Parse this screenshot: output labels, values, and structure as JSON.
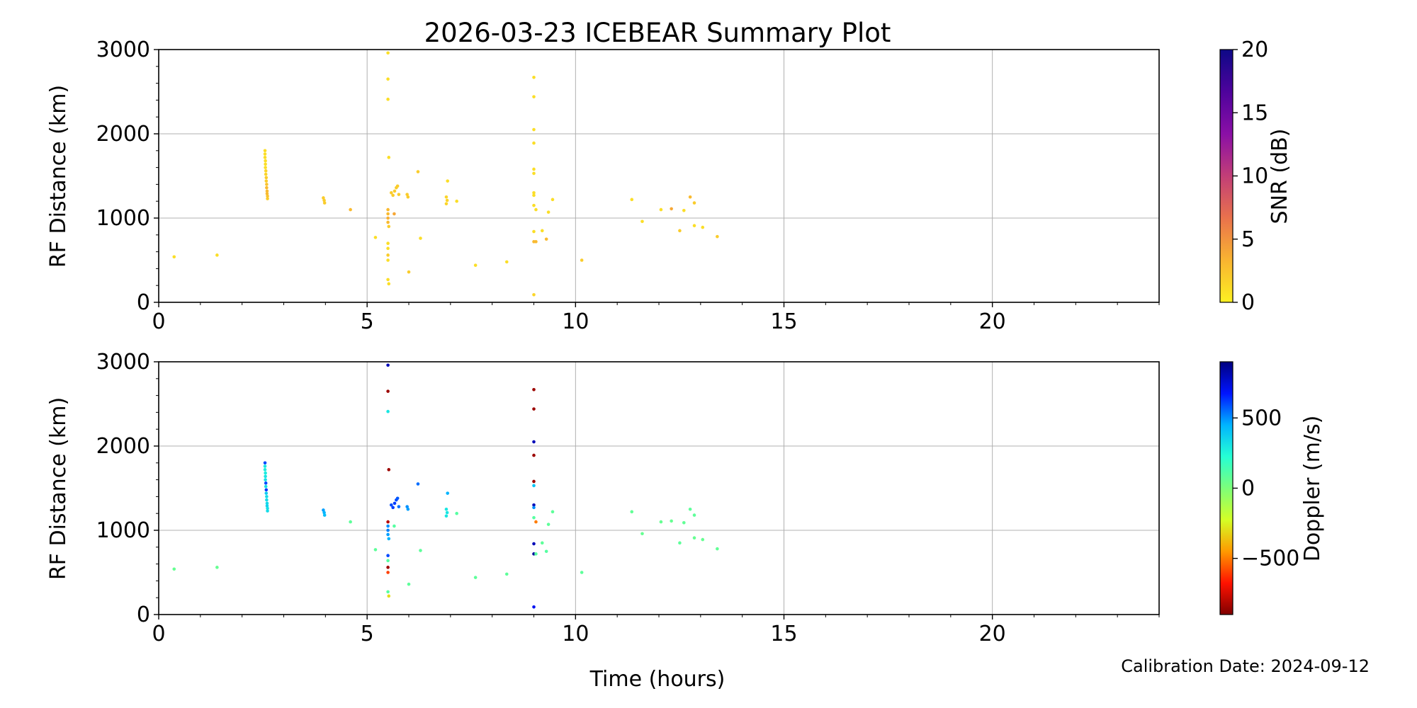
{
  "figure": {
    "title": "2026-03-23 ICEBEAR Summary Plot",
    "xlabel": "Time (hours)",
    "footer": "Calibration Date: 2024-09-12"
  },
  "chart_data": [
    {
      "type": "scatter",
      "ylabel": "RF Distance (km)",
      "xlim": [
        0,
        24
      ],
      "ylim": [
        0,
        3000
      ],
      "x_ticks": [
        0,
        5,
        10,
        15,
        20
      ],
      "x_tick_labels": [
        "0",
        "5",
        "10",
        "15",
        "20"
      ],
      "y_ticks": [
        0,
        1000,
        2000,
        3000
      ],
      "y_tick_labels": [
        "0",
        "1000",
        "2000",
        "3000"
      ],
      "grid": true,
      "colorbar": {
        "label": "SNR (dB)",
        "range": [
          0,
          20
        ],
        "ticks": [
          0,
          5,
          10,
          15,
          20
        ],
        "tick_labels": [
          "0",
          "5",
          "10",
          "15",
          "20"
        ],
        "colors": [
          "#fcf022",
          "#f9b431",
          "#e9724c",
          "#c23e77",
          "#8a0fa6",
          "#4e039c",
          "#0d0887"
        ]
      },
      "points": [
        [
          0.37,
          540,
          1
        ],
        [
          1.4,
          560,
          1
        ],
        [
          2.55,
          1800,
          1
        ],
        [
          2.55,
          1760,
          1
        ],
        [
          2.55,
          1720,
          1
        ],
        [
          2.56,
          1680,
          1
        ],
        [
          2.56,
          1640,
          1
        ],
        [
          2.56,
          1600,
          1
        ],
        [
          2.57,
          1560,
          1.5
        ],
        [
          2.57,
          1520,
          1.5
        ],
        [
          2.58,
          1480,
          2
        ],
        [
          2.58,
          1440,
          2
        ],
        [
          2.59,
          1400,
          2.5
        ],
        [
          2.59,
          1360,
          3
        ],
        [
          2.6,
          1320,
          3
        ],
        [
          2.6,
          1290,
          3
        ],
        [
          2.61,
          1260,
          2.5
        ],
        [
          2.61,
          1230,
          2
        ],
        [
          3.95,
          1240,
          2
        ],
        [
          3.97,
          1210,
          2
        ],
        [
          3.98,
          1180,
          2
        ],
        [
          4.6,
          1100,
          3
        ],
        [
          5.2,
          770,
          1
        ],
        [
          5.5,
          2960,
          1
        ],
        [
          5.5,
          2650,
          1
        ],
        [
          5.5,
          2410,
          1
        ],
        [
          5.52,
          1720,
          1
        ],
        [
          5.5,
          1100,
          3
        ],
        [
          5.5,
          1050,
          3
        ],
        [
          5.5,
          1000,
          3.5
        ],
        [
          5.5,
          950,
          3
        ],
        [
          5.52,
          900,
          2
        ],
        [
          5.5,
          700,
          1
        ],
        [
          5.5,
          640,
          1
        ],
        [
          5.5,
          560,
          2
        ],
        [
          5.5,
          500,
          1
        ],
        [
          5.5,
          270,
          1
        ],
        [
          5.52,
          220,
          1
        ],
        [
          5.58,
          1300,
          2
        ],
        [
          5.62,
          1270,
          2
        ],
        [
          5.66,
          1320,
          2
        ],
        [
          5.7,
          1360,
          2
        ],
        [
          5.73,
          1380,
          2
        ],
        [
          5.76,
          1280,
          2
        ],
        [
          5.65,
          1050,
          4
        ],
        [
          5.96,
          1280,
          2
        ],
        [
          5.98,
          1250,
          2
        ],
        [
          6.0,
          360,
          2
        ],
        [
          6.22,
          1550,
          2
        ],
        [
          6.28,
          760,
          1
        ],
        [
          6.9,
          1250,
          1.5
        ],
        [
          6.92,
          1210,
          1.5
        ],
        [
          6.9,
          1170,
          1.5
        ],
        [
          6.93,
          1440,
          1
        ],
        [
          7.15,
          1200,
          1
        ],
        [
          7.6,
          440,
          1
        ],
        [
          8.35,
          480,
          1
        ],
        [
          9.0,
          2670,
          1
        ],
        [
          9.0,
          2440,
          1
        ],
        [
          9.0,
          2050,
          1
        ],
        [
          9.0,
          1890,
          1
        ],
        [
          9.0,
          1580,
          1
        ],
        [
          9.0,
          1530,
          1
        ],
        [
          9.0,
          1300,
          1
        ],
        [
          9.0,
          1270,
          1
        ],
        [
          9.0,
          1150,
          1
        ],
        [
          9.05,
          1100,
          1
        ],
        [
          9.0,
          840,
          1
        ],
        [
          9.0,
          720,
          3
        ],
        [
          9.05,
          720,
          3
        ],
        [
          9.0,
          90,
          1.5
        ],
        [
          9.2,
          850,
          1
        ],
        [
          9.3,
          750,
          3
        ],
        [
          9.35,
          1070,
          1
        ],
        [
          9.45,
          1220,
          1
        ],
        [
          10.15,
          500,
          2
        ],
        [
          11.35,
          1220,
          1
        ],
        [
          11.6,
          960,
          1
        ],
        [
          12.05,
          1100,
          1
        ],
        [
          12.3,
          1110,
          4
        ],
        [
          12.5,
          850,
          2
        ],
        [
          12.6,
          1090,
          1
        ],
        [
          12.75,
          1250,
          3
        ],
        [
          12.85,
          1180,
          2
        ],
        [
          12.85,
          910,
          1
        ],
        [
          13.05,
          890,
          1
        ],
        [
          13.4,
          780,
          2
        ]
      ]
    },
    {
      "type": "scatter",
      "ylabel": "RF Distance (km)",
      "xlim": [
        0,
        24
      ],
      "ylim": [
        0,
        3000
      ],
      "x_ticks": [
        0,
        5,
        10,
        15,
        20
      ],
      "x_tick_labels": [
        "0",
        "5",
        "10",
        "15",
        "20"
      ],
      "y_ticks": [
        0,
        1000,
        2000,
        3000
      ],
      "y_tick_labels": [
        "0",
        "1000",
        "2000",
        "3000"
      ],
      "grid": true,
      "colorbar": {
        "label": "Doppler (m/s)",
        "range": [
          -900,
          900
        ],
        "ticks": [
          -500,
          0,
          500
        ],
        "tick_labels": [
          "−500",
          "0",
          "500"
        ],
        "colors": [
          "#800000",
          "#ff1200",
          "#ff9a00",
          "#d4ff26",
          "#7dff7a",
          "#26ffd4",
          "#00b4ff",
          "#0014ff",
          "#000080"
        ]
      },
      "points": [
        [
          0.37,
          540,
          60
        ],
        [
          1.4,
          560,
          60
        ],
        [
          2.55,
          1800,
          600
        ],
        [
          2.55,
          1760,
          300
        ],
        [
          2.55,
          1720,
          280
        ],
        [
          2.56,
          1680,
          280
        ],
        [
          2.56,
          1640,
          300
        ],
        [
          2.56,
          1600,
          320
        ],
        [
          2.57,
          1560,
          600
        ],
        [
          2.57,
          1520,
          320
        ],
        [
          2.58,
          1480,
          620
        ],
        [
          2.58,
          1440,
          380
        ],
        [
          2.59,
          1400,
          330
        ],
        [
          2.59,
          1360,
          330
        ],
        [
          2.6,
          1320,
          340
        ],
        [
          2.6,
          1290,
          360
        ],
        [
          2.61,
          1260,
          320
        ],
        [
          2.61,
          1230,
          330
        ],
        [
          3.95,
          1240,
          480
        ],
        [
          3.97,
          1210,
          450
        ],
        [
          3.98,
          1180,
          420
        ],
        [
          4.6,
          1100,
          80
        ],
        [
          5.2,
          770,
          80
        ],
        [
          5.5,
          2960,
          800
        ],
        [
          5.5,
          2650,
          -850
        ],
        [
          5.5,
          2410,
          300
        ],
        [
          5.52,
          1720,
          -850
        ],
        [
          5.5,
          1100,
          -800
        ],
        [
          5.5,
          1050,
          500
        ],
        [
          5.5,
          1000,
          520
        ],
        [
          5.5,
          950,
          480
        ],
        [
          5.52,
          900,
          450
        ],
        [
          5.5,
          700,
          600
        ],
        [
          5.5,
          640,
          100
        ],
        [
          5.5,
          560,
          -850
        ],
        [
          5.5,
          500,
          -600
        ],
        [
          5.5,
          270,
          100
        ],
        [
          5.52,
          220,
          -300
        ],
        [
          5.58,
          1300,
          600
        ],
        [
          5.62,
          1270,
          620
        ],
        [
          5.66,
          1320,
          620
        ],
        [
          5.7,
          1360,
          600
        ],
        [
          5.73,
          1380,
          580
        ],
        [
          5.76,
          1280,
          550
        ],
        [
          5.65,
          1050,
          100
        ],
        [
          5.96,
          1280,
          500
        ],
        [
          5.98,
          1250,
          480
        ],
        [
          6.0,
          360,
          80
        ],
        [
          6.22,
          1550,
          550
        ],
        [
          6.28,
          760,
          80
        ],
        [
          6.9,
          1250,
          300
        ],
        [
          6.92,
          1210,
          300
        ],
        [
          6.9,
          1170,
          300
        ],
        [
          6.93,
          1440,
          450
        ],
        [
          7.15,
          1200,
          100
        ],
        [
          7.6,
          440,
          80
        ],
        [
          8.35,
          480,
          80
        ],
        [
          9.0,
          2670,
          -850
        ],
        [
          9.0,
          2440,
          -850
        ],
        [
          9.0,
          2050,
          800
        ],
        [
          9.0,
          1890,
          -850
        ],
        [
          9.0,
          1580,
          -850
        ],
        [
          9.0,
          1530,
          400
        ],
        [
          9.0,
          1300,
          800
        ],
        [
          9.0,
          1270,
          500
        ],
        [
          9.0,
          1150,
          100
        ],
        [
          9.05,
          1100,
          -500
        ],
        [
          9.0,
          840,
          800
        ],
        [
          9.0,
          720,
          850
        ],
        [
          9.05,
          720,
          100
        ],
        [
          9.0,
          90,
          700
        ],
        [
          9.2,
          850,
          80
        ],
        [
          9.3,
          750,
          100
        ],
        [
          9.35,
          1070,
          80
        ],
        [
          9.45,
          1220,
          80
        ],
        [
          10.15,
          500,
          80
        ],
        [
          11.35,
          1220,
          70
        ],
        [
          11.6,
          960,
          60
        ],
        [
          12.05,
          1100,
          60
        ],
        [
          12.3,
          1110,
          60
        ],
        [
          12.5,
          850,
          80
        ],
        [
          12.6,
          1090,
          70
        ],
        [
          12.75,
          1250,
          80
        ],
        [
          12.85,
          1180,
          80
        ],
        [
          12.85,
          910,
          60
        ],
        [
          13.05,
          890,
          60
        ],
        [
          13.4,
          780,
          70
        ]
      ]
    }
  ]
}
